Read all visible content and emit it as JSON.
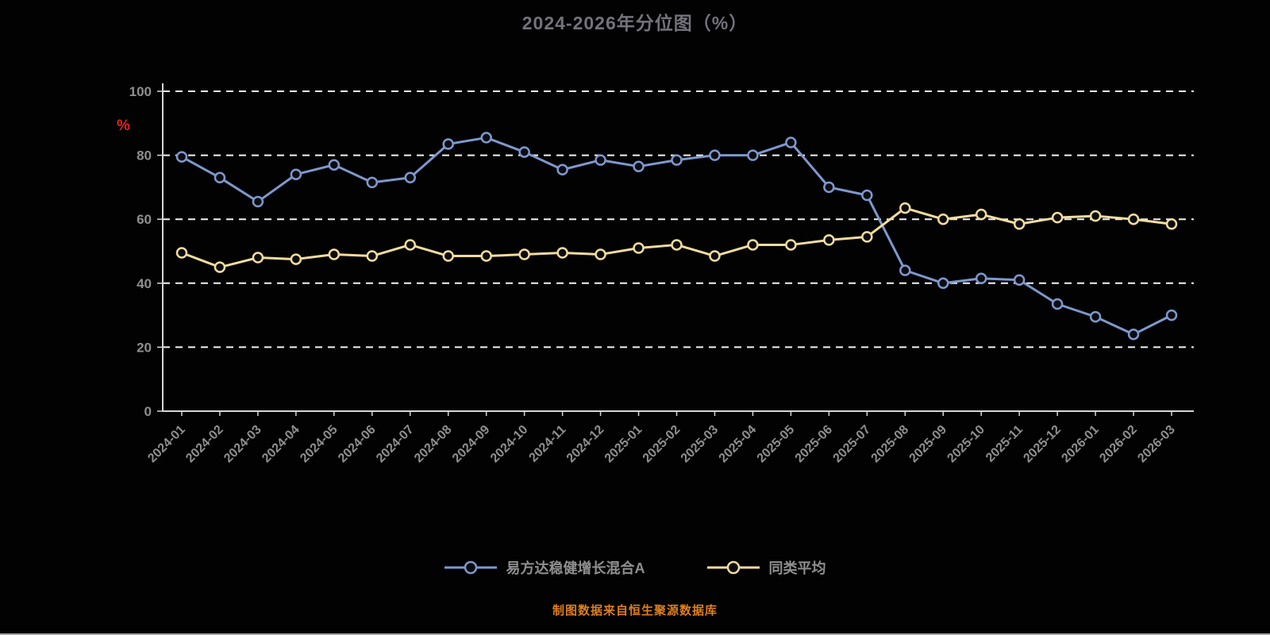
{
  "page": {
    "background": "#020203"
  },
  "header": {
    "title": "2024-2026年分位图（%）"
  },
  "footer": {
    "source_note": "制图数据来自恒生聚源数据库"
  },
  "colors": {
    "series_fund": "#7E98CC",
    "series_peer": "#F2DC9E",
    "grid": "#FFFFFF",
    "axis": "#D6D6D6",
    "tick_label": "#8F8F8F",
    "title": "#73737C",
    "ylabel": "#E02420",
    "footer": "#DD7F1F",
    "marker_fill": "#0C0C10"
  },
  "chart_data": {
    "type": "line",
    "title": "2024-2026年分位图（%）",
    "xlabel": "",
    "ylabel": "%",
    "ylim": [
      0,
      100
    ],
    "yticks": [
      0,
      20,
      40,
      60,
      80,
      100
    ],
    "grid": true,
    "grid_style": "dashed",
    "legend_position": "bottom",
    "categories": [
      "2024-01",
      "2024-02",
      "2024-03",
      "2024-04",
      "2024-05",
      "2024-06",
      "2024-07",
      "2024-08",
      "2024-09",
      "2024-10",
      "2024-11",
      "2024-12",
      "2025-01",
      "2025-02",
      "2025-03",
      "2025-04",
      "2025-05",
      "2025-06",
      "2025-07",
      "2025-08",
      "2025-09",
      "2025-10",
      "2025-11",
      "2025-12",
      "2026-01",
      "2026-02",
      "2026-03"
    ],
    "series": [
      {
        "name": "易方达稳健增长混合A",
        "color": "#7E98CC",
        "values": [
          79.5,
          73,
          65.5,
          74,
          77,
          71.5,
          73,
          83.5,
          85.5,
          81,
          75.5,
          78.5,
          76.5,
          78.5,
          80,
          80,
          84,
          70,
          67.5,
          44,
          40,
          41.5,
          41,
          33.5,
          29.5,
          24,
          30
        ]
      },
      {
        "name": "同类平均",
        "color": "#F2DC9E",
        "values": [
          49.5,
          45,
          48,
          47.5,
          49,
          48.5,
          52,
          48.5,
          48.5,
          49,
          49.5,
          49,
          51,
          52,
          48.5,
          52,
          52,
          53.5,
          54.5,
          63.5,
          60,
          61.5,
          58.5,
          60.5,
          61,
          60,
          58.5
        ]
      }
    ]
  }
}
